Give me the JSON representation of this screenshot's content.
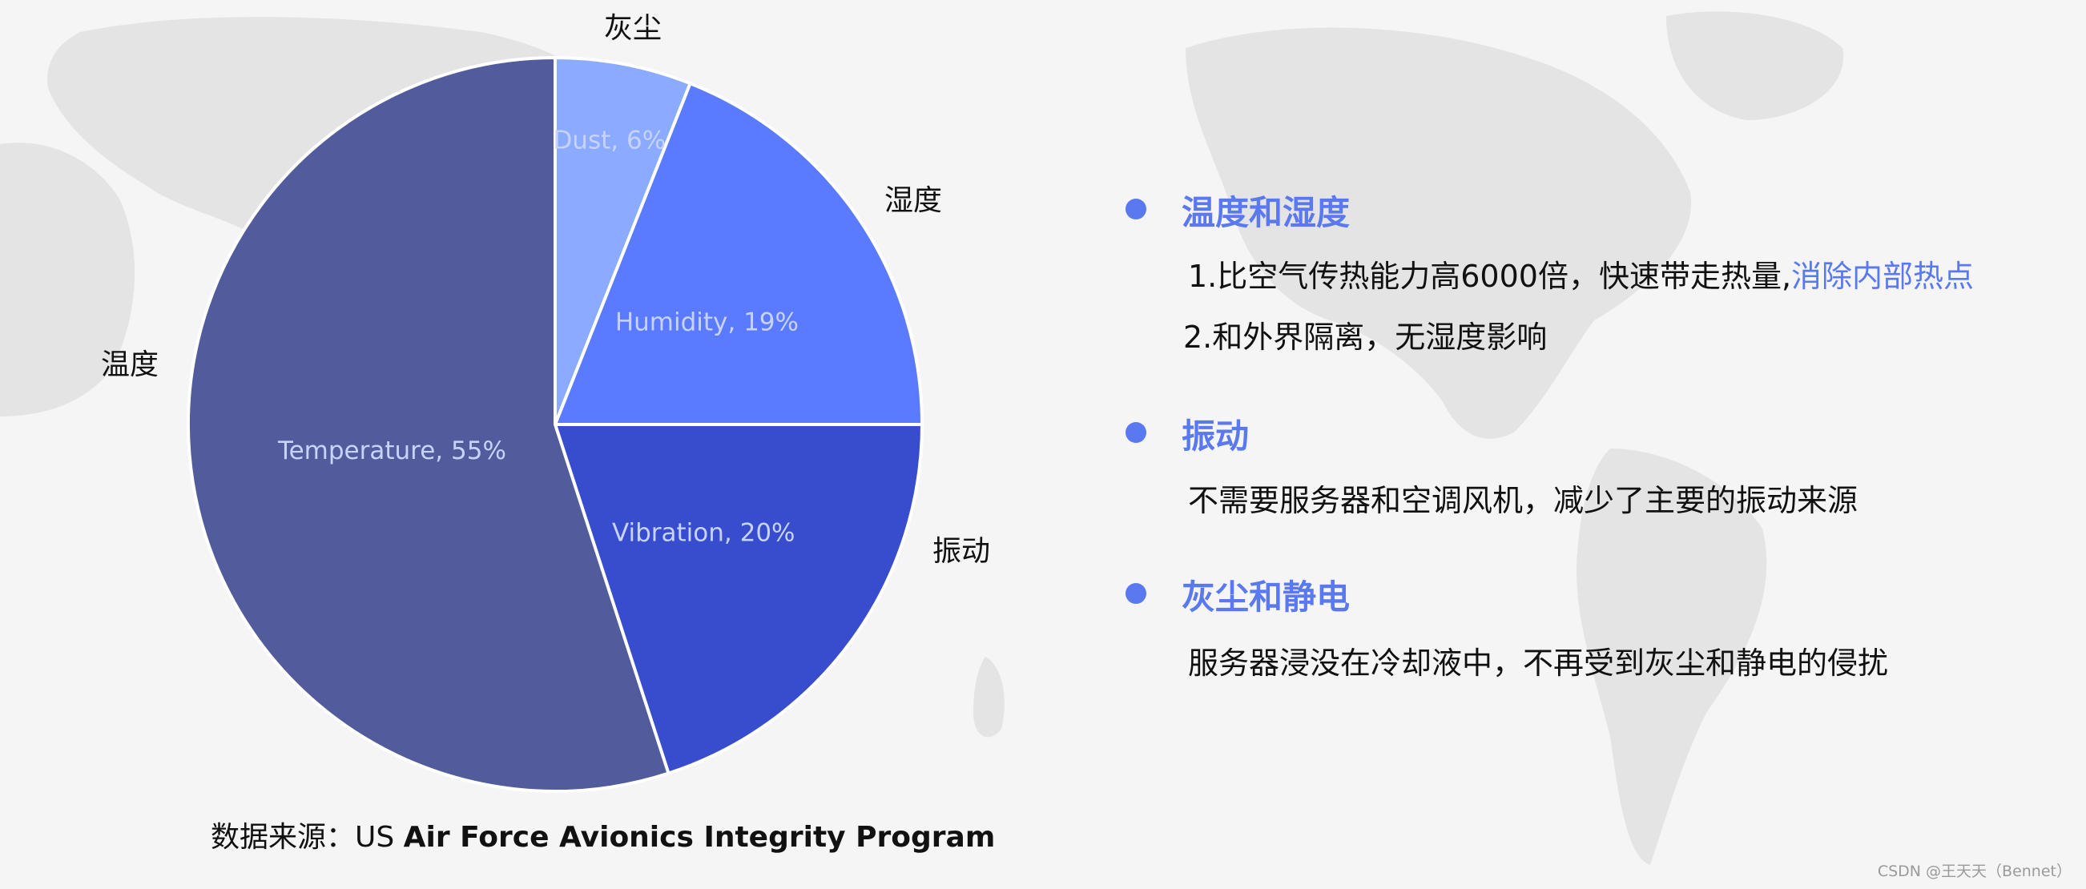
{
  "colors": {
    "temperature": "#525b9b",
    "vibration": "#384dcd",
    "humidity": "#5a7bff",
    "dust": "#8aabff",
    "accent": "#5a78f0",
    "inner_label": "#c7d3ff"
  },
  "chart_data": {
    "type": "pie",
    "start": "12 o'clock",
    "direction": "clockwise",
    "slices": [
      {
        "key": "dust",
        "label": "Dust, 6%",
        "value": 6,
        "outer_label": "灰尘",
        "color": "#8aabff"
      },
      {
        "key": "humidity",
        "label": "Humidity, 19%",
        "value": 19,
        "outer_label": "湿度",
        "color": "#5a7bff"
      },
      {
        "key": "vibration",
        "label": "Vibration, 20%",
        "value": 20,
        "outer_label": "振动",
        "color": "#384dcd"
      },
      {
        "key": "temperature",
        "label": "Temperature, 55%",
        "value": 55,
        "outer_label": "温度",
        "color": "#525b9b"
      }
    ]
  },
  "panel": {
    "sections": [
      {
        "heading": "温度和湿度",
        "lines": [
          {
            "text": "1.比空气传热能力高6000倍，快速带走热量,",
            "highlight": "消除内部热点"
          },
          {
            "text": "2.和外界隔离，无湿度影响"
          }
        ]
      },
      {
        "heading": "振动",
        "lines": [
          {
            "text": "不需要服务器和空调风机，减少了主要的振动来源"
          }
        ]
      },
      {
        "heading": "灰尘和静电",
        "lines": [
          {
            "text": "服务器浸没在冷却液中，不再受到灰尘和静电的侵扰"
          }
        ]
      }
    ]
  },
  "source": {
    "prefix": "数据来源：US ",
    "bold": "Air Force Avionics Integrity Program"
  },
  "watermark": "CSDN @王天天（Bennet）"
}
